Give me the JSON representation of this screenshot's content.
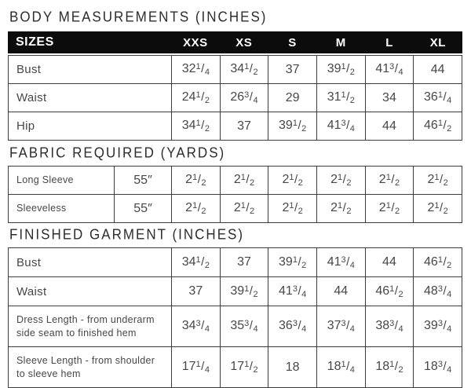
{
  "page": {
    "background": "#ffffff",
    "text_color": "#3f3f3f",
    "header_bar_bg": "#0c0c0c",
    "header_bar_text": "#ffffff"
  },
  "size_columns": [
    "XXS",
    "XS",
    "S",
    "M",
    "L",
    "XL"
  ],
  "sections": [
    {
      "title": "BODY MEASUREMENTS (INCHES)",
      "table": {
        "header_label": "SIZES",
        "rows": [
          {
            "label": "Bust",
            "values": [
              "32 1/4",
              "34 1/2",
              "37",
              "39 1/2",
              "41 3/4",
              "44"
            ]
          },
          {
            "label": "Waist",
            "values": [
              "24 1/2",
              "26 3/4",
              "29",
              "31 1/2",
              "34",
              "36 1/4"
            ]
          },
          {
            "label": "Hip",
            "values": [
              "34 1/2",
              "37",
              "39 1/2",
              "41 3/4",
              "44",
              "46 1/2"
            ]
          }
        ]
      }
    },
    {
      "title": "FABRIC REQUIRED (YARDS)",
      "table": {
        "rows": [
          {
            "label": "Long Sleeve",
            "fabric_width": "55″",
            "values": [
              "2 1/2",
              "2 1/2",
              "2 1/2",
              "2 1/2",
              "2 1/2",
              "2 1/2"
            ]
          },
          {
            "label": "Sleeveless",
            "fabric_width": "55″",
            "values": [
              "2 1/2",
              "2 1/2",
              "2 1/2",
              "2 1/2",
              "2 1/2",
              "2 1/2"
            ]
          }
        ]
      }
    },
    {
      "title": "FINISHED GARMENT (INCHES)",
      "table": {
        "rows": [
          {
            "label": "Bust",
            "values": [
              "34 1/2",
              "37",
              "39 1/2",
              "41 3/4",
              "44",
              "46 1/2"
            ]
          },
          {
            "label": "Waist",
            "values": [
              "37",
              "39 1/2",
              "41 3/4",
              "44",
              "46 1/2",
              "48 3/4"
            ]
          },
          {
            "label": "Dress Length - from underarm side seam to finished hem",
            "tall": true,
            "values": [
              "34 3/4",
              "35 3/4",
              "36 3/4",
              "37 3/4",
              "38 3/4",
              "39 3/4"
            ]
          },
          {
            "label": "Sleeve Length - from shoulder to sleeve hem",
            "tall": true,
            "values": [
              "17 1/4",
              "17 1/2",
              "18",
              "18 1/4",
              "18 1/2",
              "18 3/4"
            ]
          }
        ]
      }
    }
  ]
}
